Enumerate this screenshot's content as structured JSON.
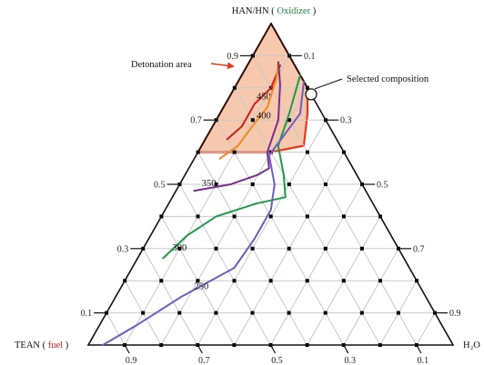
{
  "chart_data": {
    "type": "ternary",
    "vertices": {
      "top": {
        "name": "HAN/HN",
        "role": "Oxidizer",
        "role_color": "#1a8a3a"
      },
      "left": {
        "name": "TEAN",
        "role": "fuel",
        "role_color": "#d42020"
      },
      "right": {
        "name": "H₂O"
      }
    },
    "left_axis_ticks": [
      "0.9",
      "0.7",
      "0.5",
      "0.3",
      "0.1"
    ],
    "right_axis_ticks": [
      "0.1",
      "0.3",
      "0.5",
      "0.7",
      "0.9"
    ],
    "bottom_axis_ticks": [
      "0.9",
      "0.7",
      "0.5",
      "0.3",
      "0.1"
    ],
    "grid_step": 0.1,
    "detonation_area": {
      "label": "Detonation area",
      "fill": "#f6c9ae",
      "stroke": "#e63a1f",
      "boundary": [
        [
          1.0,
          0.0,
          0.0
        ],
        [
          0.8,
          0.0,
          0.2
        ],
        [
          0.72,
          0.04,
          0.24
        ],
        [
          0.62,
          0.1,
          0.28
        ],
        [
          0.6,
          0.2,
          0.2
        ],
        [
          0.6,
          0.4,
          0.0
        ]
      ]
    },
    "selected_composition": {
      "label": "Selected composition",
      "point": [
        0.78,
        0.0,
        0.22
      ]
    },
    "isotherm_labels": [
      "450",
      "400",
      "350",
      "300",
      "250"
    ],
    "isotherms": [
      {
        "label_index": 0,
        "color": "#cc1f1f",
        "points": [
          [
            0.64,
            0.3,
            0.06
          ],
          [
            0.68,
            0.24,
            0.08
          ],
          [
            0.75,
            0.17,
            0.08
          ],
          [
            0.8,
            0.1,
            0.1
          ],
          [
            0.87,
            0.04,
            0.09
          ]
        ],
        "label_at": [
          0.77,
          0.135,
          0.095
        ]
      },
      {
        "label_index": 1,
        "color": "#f08a1e",
        "points": [
          [
            0.58,
            0.35,
            0.07
          ],
          [
            0.62,
            0.28,
            0.1
          ],
          [
            0.69,
            0.2,
            0.11
          ],
          [
            0.74,
            0.14,
            0.12
          ],
          [
            0.83,
            0.07,
            0.1
          ],
          [
            0.88,
            0.04,
            0.08
          ]
        ],
        "label_at": [
          0.71,
          0.165,
          0.125
        ]
      },
      {
        "label_index": 2,
        "color": "#7b2d8e",
        "points": [
          [
            0.48,
            0.47,
            0.05
          ],
          [
            0.5,
            0.36,
            0.14
          ],
          [
            0.53,
            0.27,
            0.2
          ],
          [
            0.55,
            0.23,
            0.22
          ],
          [
            0.6,
            0.21,
            0.19
          ],
          [
            0.7,
            0.13,
            0.17
          ],
          [
            0.81,
            0.07,
            0.12
          ],
          [
            0.88,
            0.04,
            0.08
          ]
        ],
        "label_at": [
          0.5,
          0.42,
          0.08
        ]
      },
      {
        "label_index": 3,
        "color": "#1e9a4a",
        "points": [
          [
            0.27,
            0.66,
            0.07
          ],
          [
            0.34,
            0.56,
            0.1
          ],
          [
            0.4,
            0.45,
            0.15
          ],
          [
            0.44,
            0.32,
            0.24
          ],
          [
            0.46,
            0.23,
            0.31
          ],
          [
            0.53,
            0.2,
            0.27
          ],
          [
            0.62,
            0.17,
            0.21
          ],
          [
            0.72,
            0.09,
            0.19
          ],
          [
            0.84,
            0.0,
            0.16
          ]
        ],
        "label_at": [
          0.3,
          0.6,
          0.1
        ]
      },
      {
        "label_index": 4,
        "color": "#6e5fbe",
        "points": [
          [
            0.0,
            0.96,
            0.04
          ],
          [
            0.06,
            0.84,
            0.1
          ],
          [
            0.15,
            0.67,
            0.18
          ],
          [
            0.24,
            0.48,
            0.28
          ],
          [
            0.33,
            0.38,
            0.29
          ],
          [
            0.42,
            0.29,
            0.29
          ],
          [
            0.5,
            0.24,
            0.26
          ],
          [
            0.59,
            0.21,
            0.2
          ],
          [
            0.72,
            0.06,
            0.22
          ],
          [
            0.82,
            0.0,
            0.18
          ]
        ],
        "label_at": [
          0.18,
          0.6,
          0.22
        ]
      }
    ]
  }
}
